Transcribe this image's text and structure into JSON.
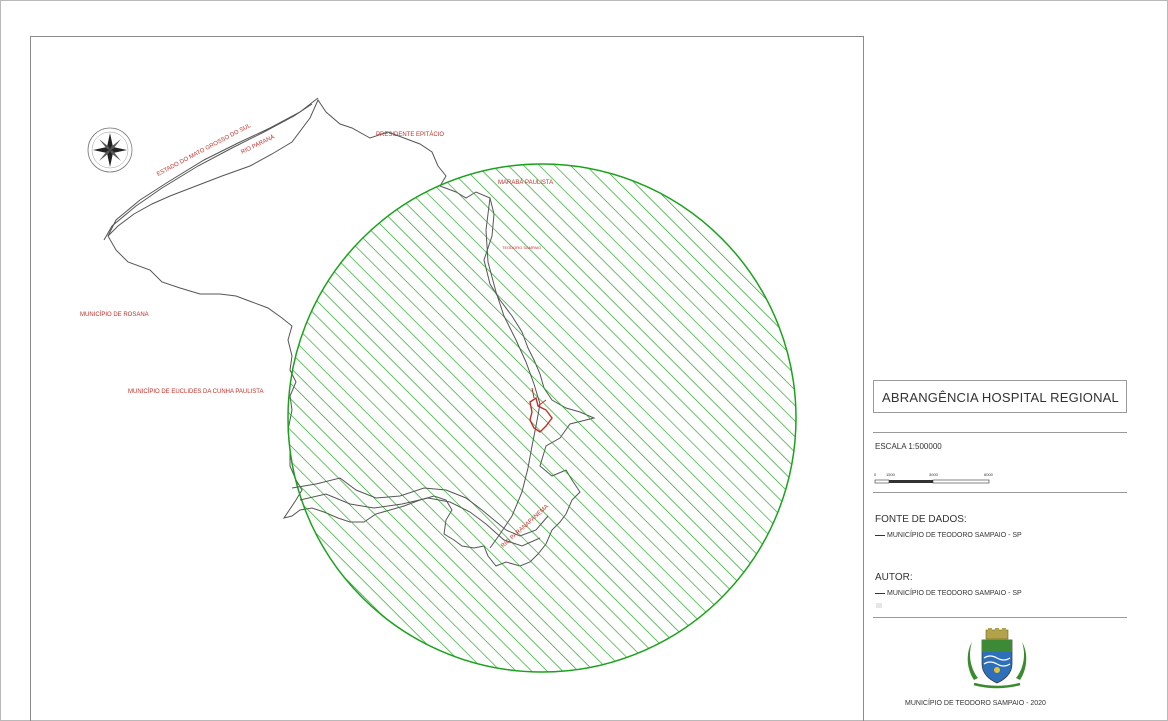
{
  "map": {
    "labels": {
      "estado_ms": "ESTADO DO MATO GROSSO DO SUL",
      "rio_parana": "RIO PARANÁ",
      "presidente_epitacio": "PRESIDENTE EPITÁCIO",
      "marabá_paulista": "MARABÁ PAULISTA",
      "teodoro_sampaio_north": "TEODORO SAMPAIO",
      "municipio_rosana": "MUNICÍPIO DE ROSANA",
      "municipio_euclides": "MUNICÍPIO DE EUCLIDES DA CUNHA PAULISTA",
      "rio_paranapanema": "RIO PARANAPANEMA"
    },
    "colors": {
      "coverage_hatch": "#1aa21a",
      "boundary_line": "#444444",
      "urban_area": "#c0302a",
      "labels": "#c0302a"
    },
    "icons": [
      "north-arrow-compass-icon",
      "municipal-crest-icon"
    ]
  },
  "legend": {
    "title": "ABRANGÊNCIA HOSPITAL REGIONAL",
    "scale_label": "ESCALA 1:500000",
    "scale_ticks": [
      "0",
      "1500",
      "3000",
      "6000"
    ],
    "data_source_heading": "FONTE DE DADOS:",
    "data_source_value": "MUNICÍPIO DE TEODORO SAMPAIO - SP",
    "author_heading": "AUTOR:",
    "author_value": "MUNICÍPIO DE TEODORO SAMPAIO - SP",
    "footer": "MUNICÍPIO DE TEODORO SAMPAIO - 2020"
  }
}
